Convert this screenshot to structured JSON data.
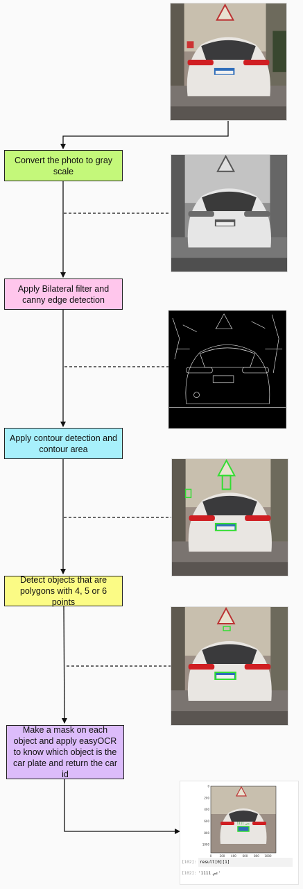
{
  "steps": [
    {
      "label": "Convert the photo to gray scale",
      "color": "#c4f87a"
    },
    {
      "label": "Apply Bilateral filter and canny edge detection",
      "color": "#ffc6ec"
    },
    {
      "label": "Apply contour detection and contour area",
      "color": "#a7f0fb"
    },
    {
      "label": "Detect objects that are polygons with 4, 5 or 6 points",
      "color": "#fbfb85"
    },
    {
      "label": "Make a mask on each object and apply easyOCR to know which object is the car plate and return the car id",
      "color": "#dcbcfa"
    }
  ],
  "plate_text": "1111 عص",
  "plot": {
    "y_ticks": [
      "0",
      "200",
      "400",
      "600",
      "800",
      "1000"
    ],
    "x_ticks": [
      "0",
      "200",
      "400",
      "600",
      "800",
      "1000"
    ]
  },
  "notebook": {
    "in_prompt": "[102]:",
    "code": "result[0][1]",
    "out_prompt": "[102]:",
    "output": "'عص 1111'"
  }
}
